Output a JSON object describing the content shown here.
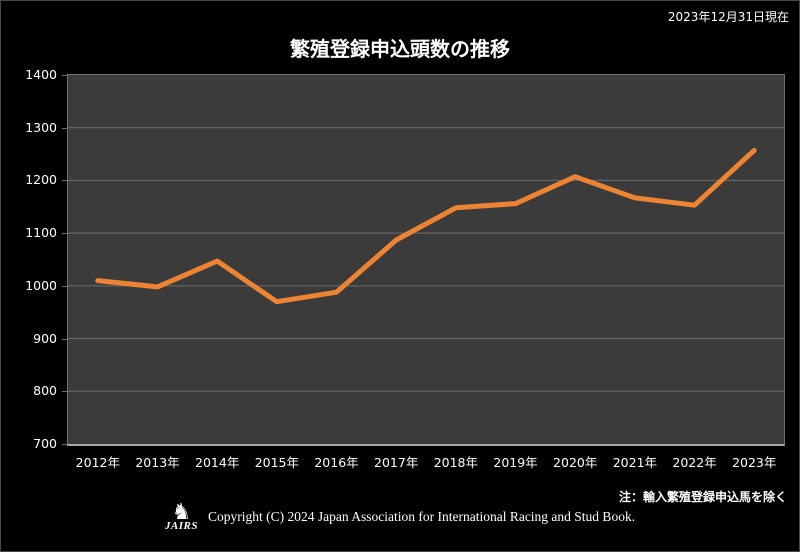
{
  "header": {
    "as_of": "2023年12月31日現在",
    "title": "繁殖登録申込頭数の推移"
  },
  "chart_data": {
    "type": "line",
    "title": "繁殖登録申込頭数の推移",
    "categories": [
      "2012年",
      "2013年",
      "2014年",
      "2015年",
      "2016年",
      "2017年",
      "2018年",
      "2019年",
      "2020年",
      "2021年",
      "2022年",
      "2023年"
    ],
    "series": [
      {
        "name": "繁殖登録申込頭数",
        "values": [
          1010,
          998,
          1047,
          970,
          988,
          1087,
          1148,
          1156,
          1207,
          1167,
          1153,
          1257
        ]
      }
    ],
    "xlabel": "",
    "ylabel": "",
    "ylim": [
      700,
      1400
    ],
    "yticks": [
      700,
      800,
      900,
      1000,
      1100,
      1200,
      1300,
      1400
    ],
    "grid": true,
    "legend": false,
    "colors": {
      "line": "#ED8433",
      "plot_background": "#3B3B3B",
      "page_background": "#000000",
      "gridline": "#6E6E6E",
      "axis_bottom": "#A6A6A6",
      "text": "#FFFFFF"
    }
  },
  "footer": {
    "note": "注：輸入繁殖登録申込馬を除く",
    "logo_text": "JAIRS",
    "copyright": "Copyright (C) 2024 Japan Association for International Racing and Stud Book."
  }
}
